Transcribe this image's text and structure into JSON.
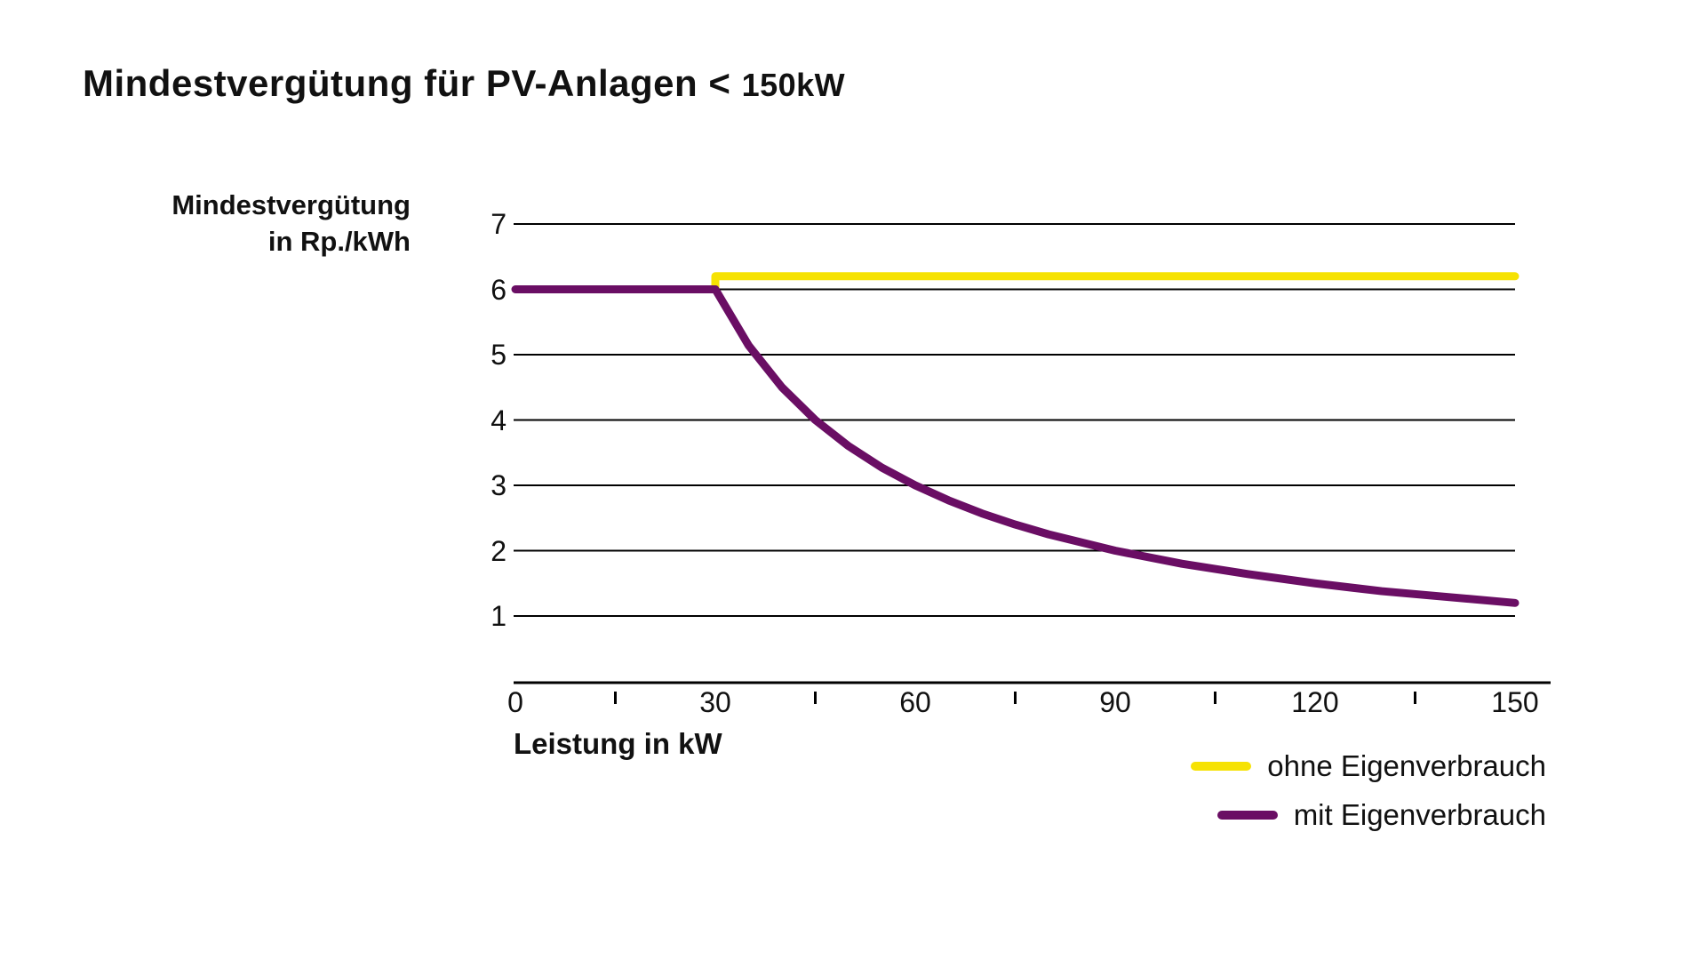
{
  "title": {
    "prefix": "Mindestvergütung für PV-Anlagen < ",
    "suffix": "150kW"
  },
  "y_axis": {
    "label_line1": "Mindestvergütung",
    "label_line2": "in Rp./kWh",
    "ticks": [
      "7",
      "6",
      "5",
      "4",
      "3",
      "2",
      "1"
    ]
  },
  "x_axis": {
    "label": "Leistung in kW",
    "ticks": [
      "0",
      "30",
      "60",
      "90",
      "120",
      "150"
    ]
  },
  "legend": [
    {
      "label": "ohne Eigenverbrauch",
      "color": "#F6E203"
    },
    {
      "label": "mit Eigenverbrauch",
      "color": "#6A0E64"
    }
  ],
  "colors": {
    "yellow": "#F6E203",
    "purple": "#6A0E64",
    "grid": "#000000",
    "axis": "#000000",
    "text": "#111111"
  },
  "chart_data": {
    "type": "line",
    "title": "Mindestvergütung für PV-Anlagen < 150kW",
    "xlabel": "Leistung in kW",
    "ylabel": "Mindestvergütung in Rp./kWh",
    "xlim": [
      0,
      150
    ],
    "y_ticks": [
      1,
      2,
      3,
      4,
      5,
      6,
      7
    ],
    "x_ticks": [
      0,
      30,
      60,
      90,
      120,
      150
    ],
    "x_minor_ticks": [
      15,
      45,
      75,
      105,
      135
    ],
    "grid": "horizontal-only",
    "legend_position": "bottom-right",
    "series": [
      {
        "name": "ohne Eigenverbrauch",
        "color": "#F6E203",
        "points": [
          [
            30,
            6.0
          ],
          [
            30,
            6.2
          ],
          [
            150,
            6.2
          ]
        ]
      },
      {
        "name": "mit Eigenverbrauch",
        "color": "#6A0E64",
        "points": [
          [
            0,
            6
          ],
          [
            30,
            6
          ],
          [
            35,
            5.14
          ],
          [
            40,
            4.5
          ],
          [
            45,
            4
          ],
          [
            50,
            3.6
          ],
          [
            55,
            3.27
          ],
          [
            60,
            3
          ],
          [
            65,
            2.77
          ],
          [
            70,
            2.57
          ],
          [
            75,
            2.4
          ],
          [
            80,
            2.25
          ],
          [
            90,
            2
          ],
          [
            100,
            1.8
          ],
          [
            110,
            1.64
          ],
          [
            120,
            1.5
          ],
          [
            130,
            1.38
          ],
          [
            140,
            1.29
          ],
          [
            150,
            1.2
          ]
        ]
      }
    ]
  }
}
